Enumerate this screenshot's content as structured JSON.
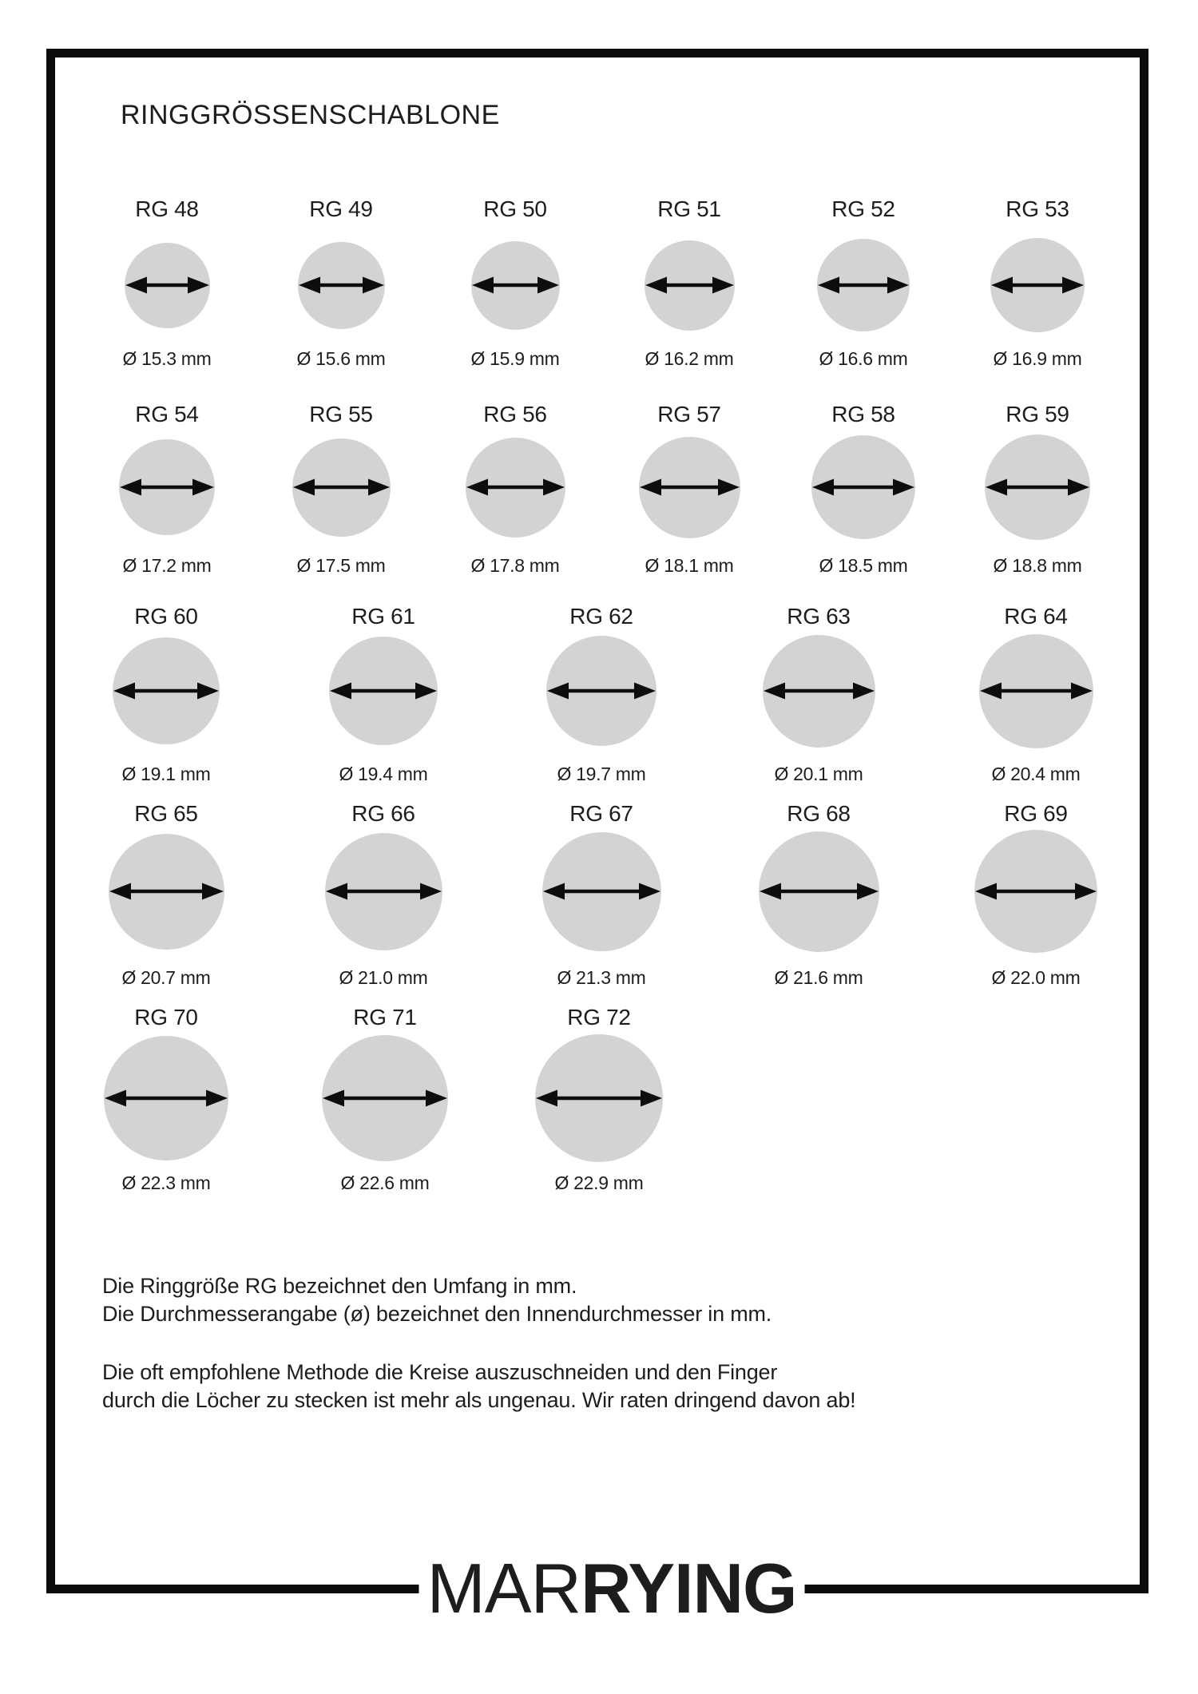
{
  "title": "RINGGRÖSSENSCHABLONE",
  "rings": [
    {
      "label": "RG 48",
      "diameter_mm": 15.3,
      "diameter_label": "Ø 15.3 mm"
    },
    {
      "label": "RG 49",
      "diameter_mm": 15.6,
      "diameter_label": "Ø 15.6 mm"
    },
    {
      "label": "RG 50",
      "diameter_mm": 15.9,
      "diameter_label": "Ø 15.9 mm"
    },
    {
      "label": "RG 51",
      "diameter_mm": 16.2,
      "diameter_label": "Ø 16.2 mm"
    },
    {
      "label": "RG 52",
      "diameter_mm": 16.6,
      "diameter_label": "Ø 16.6 mm"
    },
    {
      "label": "RG 53",
      "diameter_mm": 16.9,
      "diameter_label": "Ø 16.9 mm"
    },
    {
      "label": "RG 54",
      "diameter_mm": 17.2,
      "diameter_label": "Ø 17.2 mm"
    },
    {
      "label": "RG 55",
      "diameter_mm": 17.5,
      "diameter_label": "Ø 17.5 mm"
    },
    {
      "label": "RG 56",
      "diameter_mm": 17.8,
      "diameter_label": "Ø 17.8 mm"
    },
    {
      "label": "RG 57",
      "diameter_mm": 18.1,
      "diameter_label": "Ø 18.1 mm"
    },
    {
      "label": "RG 58",
      "diameter_mm": 18.5,
      "diameter_label": "Ø 18.5 mm"
    },
    {
      "label": "RG 59",
      "diameter_mm": 18.8,
      "diameter_label": "Ø 18.8 mm"
    },
    {
      "label": "RG 60",
      "diameter_mm": 19.1,
      "diameter_label": "Ø 19.1 mm"
    },
    {
      "label": "RG 61",
      "diameter_mm": 19.4,
      "diameter_label": "Ø 19.4 mm"
    },
    {
      "label": "RG 62",
      "diameter_mm": 19.7,
      "diameter_label": "Ø 19.7 mm"
    },
    {
      "label": "RG 63",
      "diameter_mm": 20.1,
      "diameter_label": "Ø 20.1 mm"
    },
    {
      "label": "RG 64",
      "diameter_mm": 20.4,
      "diameter_label": "Ø 20.4 mm"
    },
    {
      "label": "RG 65",
      "diameter_mm": 20.7,
      "diameter_label": "Ø 20.7 mm"
    },
    {
      "label": "RG 66",
      "diameter_mm": 21.0,
      "diameter_label": "Ø 21.0 mm"
    },
    {
      "label": "RG 67",
      "diameter_mm": 21.3,
      "diameter_label": "Ø 21.3 mm"
    },
    {
      "label": "RG 68",
      "diameter_mm": 21.6,
      "diameter_label": "Ø 21.6 mm"
    },
    {
      "label": "RG 69",
      "diameter_mm": 22.0,
      "diameter_label": "Ø 22.0 mm"
    },
    {
      "label": "RG 70",
      "diameter_mm": 22.3,
      "diameter_label": "Ø 22.3 mm"
    },
    {
      "label": "RG 71",
      "diameter_mm": 22.6,
      "diameter_label": "Ø 22.6 mm"
    },
    {
      "label": "RG 72",
      "diameter_mm": 22.9,
      "diameter_label": "Ø 22.9 mm"
    }
  ],
  "notes": {
    "line1": "Die Ringgröße RG bezeichnet den Umfang in mm.",
    "line2": "Die Durchmesserangabe (ø) bezeichnet den Innendurchmesser in mm.",
    "line3": "Die oft empfohlene Methode die Kreise auszuschneiden und den Finger",
    "line4": "durch die Löcher zu stecken ist mehr als ungenau. Wir raten dringend davon ab!"
  },
  "logo": {
    "light": "MAR",
    "bold": "RYING"
  },
  "colors": {
    "circle_fill": "#d3d3d1",
    "arrow": "#0d0d0d",
    "ink": "#1d1d1b",
    "frame": "#0c0c0c"
  }
}
